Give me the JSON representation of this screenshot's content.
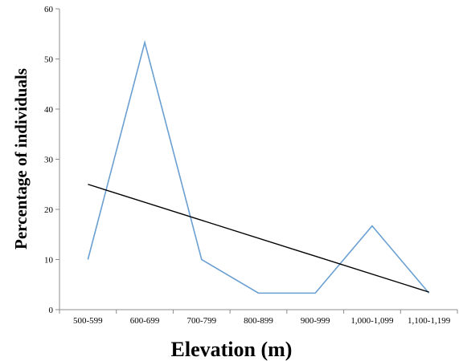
{
  "chart_data": {
    "type": "line",
    "title": "",
    "xlabel": "Elevation (m)",
    "ylabel": "Percentage of individuals",
    "categories": [
      "500-599",
      "600-699",
      "700-799",
      "800-899",
      "900-999",
      "1,000-1,099",
      "1,100-1,199"
    ],
    "ylim": [
      0,
      60
    ],
    "yticks": [
      0,
      10,
      20,
      30,
      40,
      50,
      60
    ],
    "grid": false,
    "legend": "none",
    "series": [
      {
        "values": [
          10,
          53.3,
          10,
          3.3,
          3.3,
          16.7,
          3.3
        ],
        "color": "#6a9fd2"
      }
    ],
    "trendline": {
      "values": [
        25,
        21.4,
        17.9,
        14.3,
        10.7,
        7.1,
        3.5
      ],
      "color": "#000000"
    }
  }
}
